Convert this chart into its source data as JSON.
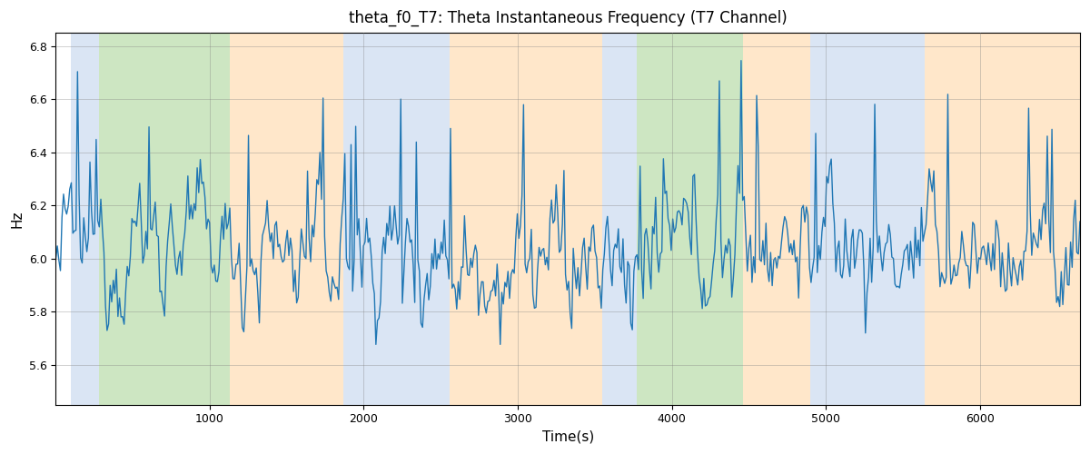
{
  "title": "theta_f0_T7: Theta Instantaneous Frequency (T7 Channel)",
  "xlabel": "Time(s)",
  "ylabel": "Hz",
  "ylim": [
    5.45,
    6.85
  ],
  "xlim": [
    0,
    6650
  ],
  "yticks": [
    5.6,
    5.8,
    6.0,
    6.2,
    6.4,
    6.6,
    6.8
  ],
  "xticks": [
    1000,
    2000,
    3000,
    4000,
    5000,
    6000
  ],
  "line_color": "#2077b4",
  "line_width": 1.0,
  "grid": true,
  "bg_regions": [
    {
      "xstart": 100,
      "xend": 280,
      "color": "#aec6e8",
      "alpha": 0.45
    },
    {
      "xstart": 280,
      "xend": 1130,
      "color": "#90c878",
      "alpha": 0.45
    },
    {
      "xstart": 1130,
      "xend": 1870,
      "color": "#ffcb8a",
      "alpha": 0.45
    },
    {
      "xstart": 1870,
      "xend": 2560,
      "color": "#aec6e8",
      "alpha": 0.45
    },
    {
      "xstart": 2560,
      "xend": 3550,
      "color": "#ffcb8a",
      "alpha": 0.45
    },
    {
      "xstart": 3550,
      "xend": 3770,
      "color": "#aec6e8",
      "alpha": 0.45
    },
    {
      "xstart": 3770,
      "xend": 3830,
      "color": "#90c878",
      "alpha": 0.45
    },
    {
      "xstart": 3830,
      "xend": 4460,
      "color": "#90c878",
      "alpha": 0.45
    },
    {
      "xstart": 4460,
      "xend": 4900,
      "color": "#ffcb8a",
      "alpha": 0.45
    },
    {
      "xstart": 4900,
      "xend": 5640,
      "color": "#aec6e8",
      "alpha": 0.45
    },
    {
      "xstart": 5640,
      "xend": 6650,
      "color": "#ffcb8a",
      "alpha": 0.45
    }
  ],
  "seed": 12345,
  "n_points": 660,
  "mean_freq": 6.02,
  "figsize": [
    12.0,
    5.0
  ],
  "dpi": 100
}
